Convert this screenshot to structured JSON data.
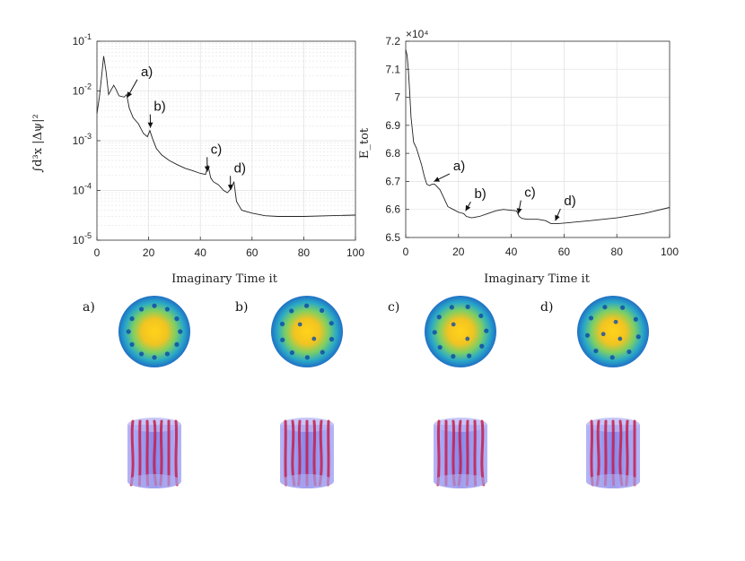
{
  "chart_data": [
    {
      "type": "line",
      "ylog": true,
      "xlabel": "Imaginary Time it",
      "ylabel": "∫d³x |Δψ|²",
      "xlim": [
        0,
        100
      ],
      "ylim": [
        1e-05,
        0.1
      ],
      "x_ticks": [
        "0",
        "20",
        "40",
        "60",
        "80",
        "100"
      ],
      "y_ticks": [
        "10-5",
        "10-4",
        "10-3",
        "10-2",
        "10-1"
      ],
      "grid": true,
      "series": [
        {
          "x": [
            0,
            1,
            2,
            2.6,
            3.5,
            4.5,
            5.5,
            6.5,
            7.5,
            8.5,
            9.5,
            10.5,
            11.5,
            12.5,
            14,
            16,
            18,
            19.5,
            20.5,
            21.5,
            23,
            25,
            28,
            31,
            34,
            37,
            40,
            42,
            43,
            44,
            45,
            47,
            49,
            50.5,
            52,
            53,
            54,
            56,
            60,
            65,
            70,
            80,
            90,
            100
          ],
          "y": [
            0.0035,
            0.008,
            0.025,
            0.05,
            0.025,
            0.0085,
            0.0105,
            0.013,
            0.0105,
            0.008,
            0.0078,
            0.0075,
            0.0085,
            0.0045,
            0.0029,
            0.0022,
            0.0014,
            0.0012,
            0.0016,
            0.0011,
            0.0007,
            0.00052,
            0.0004,
            0.00033,
            0.00028,
            0.00025,
            0.00022,
            0.00021,
            0.00032,
            0.00018,
            0.00015,
            0.00013,
            0.0001,
            9e-05,
            0.00011,
            0.00015,
            6e-05,
            4e-05,
            3.5e-05,
            3.1e-05,
            3e-05,
            3e-05,
            3.1e-05,
            3.2e-05
          ]
        }
      ],
      "annotations": [
        {
          "label": "a)",
          "x": 11,
          "y": 0.0065,
          "label_x": 17,
          "label_y": 0.02
        },
        {
          "label": "b)",
          "x": 20,
          "y": 0.0016,
          "label_x": 22,
          "label_y": 0.004
        },
        {
          "label": "c)",
          "x": 42,
          "y": 0.00021,
          "label_x": 44,
          "label_y": 0.00055
        },
        {
          "label": "d)",
          "x": 51,
          "y": 9e-05,
          "label_x": 53,
          "label_y": 0.00023
        }
      ]
    },
    {
      "type": "line",
      "xlabel": "Imaginary Time it",
      "ylabel": "E_tot",
      "multiplier": "×10⁴",
      "xlim": [
        0,
        100
      ],
      "ylim": [
        6.5,
        7.2
      ],
      "x_ticks": [
        "0",
        "20",
        "40",
        "60",
        "80",
        "100"
      ],
      "y_ticks": [
        "6.5",
        "6.6",
        "6.7",
        "6.8",
        "6.9",
        "7",
        "7.1",
        "7.2"
      ],
      "grid": true,
      "series": [
        {
          "x": [
            0,
            0.5,
            1,
            1.5,
            2,
            3,
            4,
            5,
            6,
            7,
            8,
            9,
            10,
            11,
            12,
            13,
            14,
            15,
            16,
            18,
            20,
            21,
            22,
            23,
            25,
            28,
            31,
            34,
            37,
            40,
            42,
            43,
            44,
            46,
            50,
            53,
            55,
            58,
            62,
            70,
            80,
            90,
            100
          ],
          "y": [
            7.17,
            7.15,
            7.1,
            7.02,
            6.93,
            6.84,
            6.82,
            6.79,
            6.76,
            6.72,
            6.69,
            6.685,
            6.69,
            6.69,
            6.68,
            6.67,
            6.65,
            6.63,
            6.61,
            6.6,
            6.59,
            6.588,
            6.585,
            6.575,
            6.57,
            6.575,
            6.585,
            6.595,
            6.6,
            6.597,
            6.595,
            6.575,
            6.568,
            6.565,
            6.565,
            6.56,
            6.55,
            6.55,
            6.553,
            6.56,
            6.57,
            6.585,
            6.607
          ]
        }
      ],
      "annotations": [
        {
          "label": "a)",
          "x": 10,
          "y": 6.69,
          "label_x": 18,
          "label_y": 6.74
        },
        {
          "label": "b)",
          "x": 22,
          "y": 6.585,
          "label_x": 26,
          "label_y": 6.64
        },
        {
          "label": "c)",
          "x": 42,
          "y": 6.575,
          "label_x": 45,
          "label_y": 6.645
        },
        {
          "label": "d)",
          "x": 56,
          "y": 6.55,
          "label_x": 60,
          "label_y": 6.615
        }
      ]
    }
  ],
  "panels": [
    {
      "label": "a)",
      "vortex_count": 12,
      "center_count": 0
    },
    {
      "label": "b)",
      "vortex_count": 10,
      "center_count": 2
    },
    {
      "label": "c)",
      "vortex_count": 10,
      "center_count": 2
    },
    {
      "label": "d)",
      "vortex_count": 9,
      "center_count": 3
    }
  ],
  "colors": {
    "line": "#222222",
    "grid": "#e3e3e3",
    "density_outer": "#1f6fc5",
    "density_mid": "#38b8a0",
    "density_core": "#ffd31a",
    "vortex": "#0f4da8",
    "cylinder": "#8f8ff0",
    "vortex_line": "#c41f4a"
  }
}
